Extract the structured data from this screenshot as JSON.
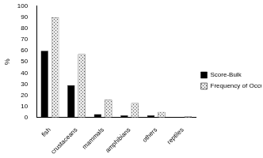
{
  "chart_data": {
    "type": "bar",
    "y_label": "%",
    "categories": [
      "fish",
      "crustaceans",
      "mammals",
      "amphibians",
      "others",
      "reptiles"
    ],
    "series": [
      {
        "name": "Score-Bulk",
        "color": "#000000",
        "values": [
          60,
          29,
          3,
          2,
          2,
          0.5
        ]
      },
      {
        "name": "Frequency of Occurrence",
        "color": "#e6e6e6",
        "values": [
          90,
          57,
          16,
          13,
          5,
          1
        ]
      }
    ],
    "ylim": [
      0,
      100
    ],
    "yticks": [
      0,
      10,
      20,
      30,
      40,
      50,
      60,
      70,
      80,
      90,
      100
    ],
    "grid": false,
    "legend": "right"
  }
}
